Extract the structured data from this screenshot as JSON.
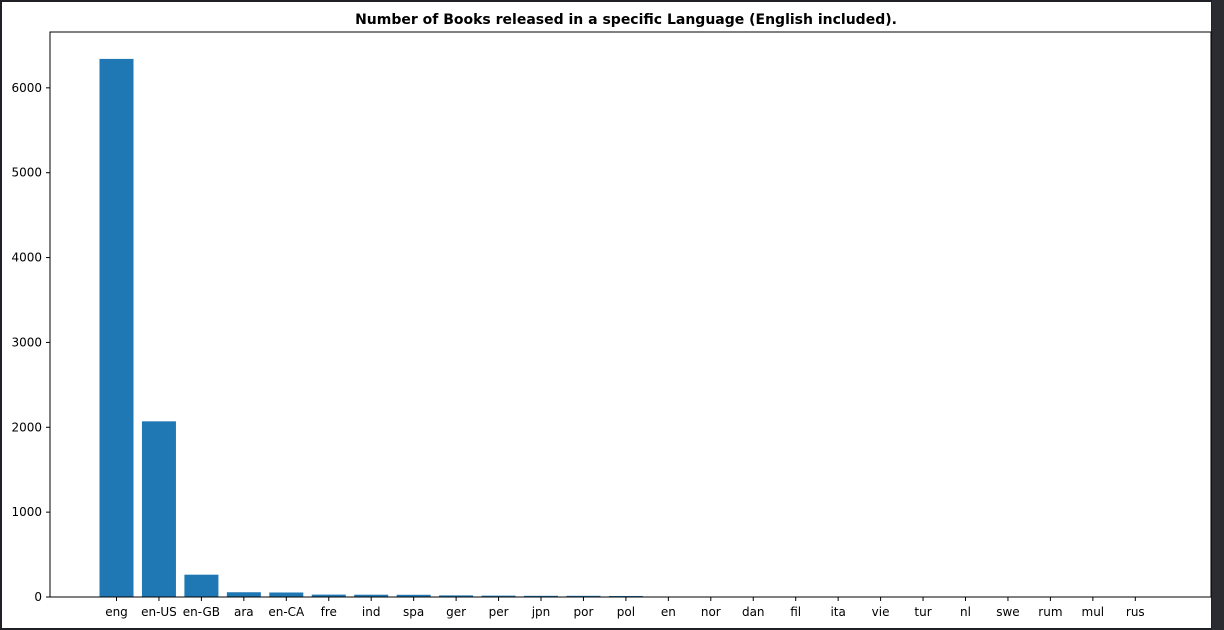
{
  "chart_data": {
    "type": "bar",
    "title": "Number of Books released in a specific Language (English included).",
    "xlabel": "",
    "ylabel": "",
    "categories": [
      "eng",
      "en-US",
      "en-GB",
      "ara",
      "en-CA",
      "fre",
      "ind",
      "spa",
      "ger",
      "per",
      "jpn",
      "por",
      "pol",
      "en",
      "nor",
      "dan",
      "fil",
      "ita",
      "vie",
      "tur",
      "nl",
      "swe",
      "rum",
      "mul",
      "rus"
    ],
    "values": [
      6341,
      2070,
      263,
      56,
      53,
      28,
      27,
      26,
      19,
      16,
      14,
      14,
      12,
      1,
      1,
      1,
      1,
      1,
      1,
      1,
      1,
      1,
      1,
      1,
      1
    ],
    "ylim": [
      0,
      6658
    ],
    "yticks": [
      0,
      1000,
      2000,
      3000,
      4000,
      5000,
      6000
    ],
    "bar_color": "#1f77b4",
    "grid": false,
    "legend": "none"
  }
}
